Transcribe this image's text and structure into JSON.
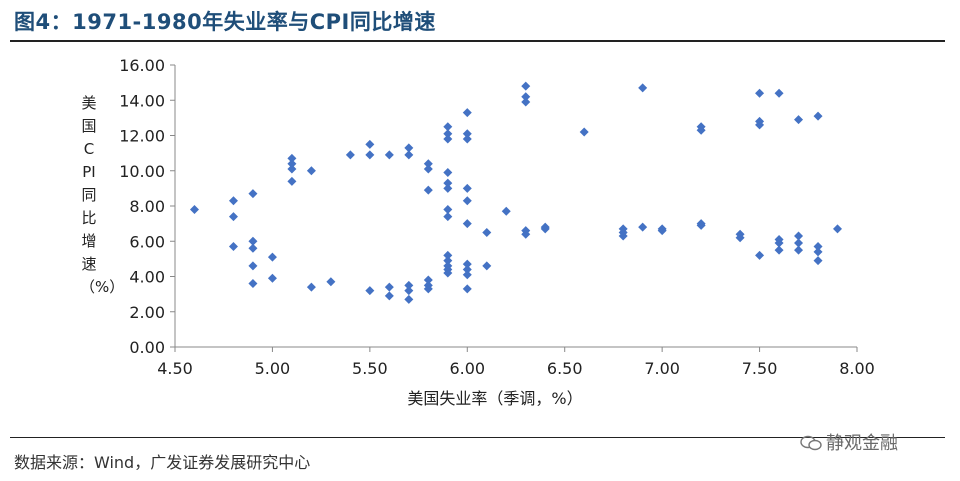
{
  "figure": {
    "title": "图4：1971-1980年失业率与CPI同比增速",
    "source": "数据来源：Wind，广发证券发展研究中心",
    "watermark": "静观金融"
  },
  "chart_data": {
    "type": "scatter",
    "title": "",
    "xlabel": "美国失业率（季调，%）",
    "ylabel": "美国CPI同比增速（%）",
    "xlim": [
      4.5,
      8.0
    ],
    "ylim": [
      0.0,
      16.0
    ],
    "x_ticks": [
      "4.50",
      "5.00",
      "5.50",
      "6.00",
      "6.50",
      "7.00",
      "7.50",
      "8.00"
    ],
    "y_ticks": [
      "0.00",
      "2.00",
      "4.00",
      "6.00",
      "8.00",
      "10.00",
      "12.00",
      "14.00",
      "16.00"
    ],
    "grid": false,
    "marker": "diamond",
    "color": "#4472C4",
    "points": [
      [
        4.6,
        7.8
      ],
      [
        4.8,
        8.3
      ],
      [
        4.8,
        7.4
      ],
      [
        4.8,
        5.7
      ],
      [
        4.9,
        8.7
      ],
      [
        4.9,
        6.0
      ],
      [
        4.9,
        5.6
      ],
      [
        4.9,
        4.6
      ],
      [
        4.9,
        3.6
      ],
      [
        5.0,
        5.1
      ],
      [
        5.0,
        3.9
      ],
      [
        5.1,
        10.7
      ],
      [
        5.1,
        10.4
      ],
      [
        5.1,
        10.1
      ],
      [
        5.1,
        9.4
      ],
      [
        5.2,
        10.0
      ],
      [
        5.2,
        3.4
      ],
      [
        5.3,
        3.7
      ],
      [
        5.4,
        10.9
      ],
      [
        5.5,
        11.5
      ],
      [
        5.5,
        10.9
      ],
      [
        5.5,
        3.2
      ],
      [
        5.6,
        10.9
      ],
      [
        5.6,
        3.4
      ],
      [
        5.6,
        2.9
      ],
      [
        5.7,
        11.3
      ],
      [
        5.7,
        10.9
      ],
      [
        5.7,
        3.5
      ],
      [
        5.7,
        3.2
      ],
      [
        5.7,
        2.7
      ],
      [
        5.8,
        10.4
      ],
      [
        5.8,
        10.1
      ],
      [
        5.8,
        8.9
      ],
      [
        5.8,
        3.8
      ],
      [
        5.8,
        3.5
      ],
      [
        5.8,
        3.3
      ],
      [
        5.9,
        12.5
      ],
      [
        5.9,
        12.1
      ],
      [
        5.9,
        11.8
      ],
      [
        5.9,
        9.9
      ],
      [
        5.9,
        9.3
      ],
      [
        5.9,
        9.0
      ],
      [
        5.9,
        7.8
      ],
      [
        5.9,
        7.4
      ],
      [
        5.9,
        5.2
      ],
      [
        5.9,
        4.9
      ],
      [
        5.9,
        4.6
      ],
      [
        5.9,
        4.4
      ],
      [
        5.9,
        4.2
      ],
      [
        6.0,
        13.3
      ],
      [
        6.0,
        12.1
      ],
      [
        6.0,
        11.8
      ],
      [
        6.0,
        9.0
      ],
      [
        6.0,
        8.3
      ],
      [
        6.0,
        7.0
      ],
      [
        6.0,
        4.7
      ],
      [
        6.0,
        4.4
      ],
      [
        6.0,
        4.1
      ],
      [
        6.0,
        3.3
      ],
      [
        6.1,
        6.5
      ],
      [
        6.1,
        4.6
      ],
      [
        6.2,
        7.7
      ],
      [
        6.3,
        14.8
      ],
      [
        6.3,
        14.2
      ],
      [
        6.3,
        13.9
      ],
      [
        6.3,
        6.6
      ],
      [
        6.3,
        6.4
      ],
      [
        6.4,
        6.8
      ],
      [
        6.4,
        6.7
      ],
      [
        6.6,
        12.2
      ],
      [
        6.8,
        6.7
      ],
      [
        6.8,
        6.5
      ],
      [
        6.8,
        6.3
      ],
      [
        6.9,
        14.7
      ],
      [
        6.9,
        6.8
      ],
      [
        7.0,
        6.7
      ],
      [
        7.0,
        6.6
      ],
      [
        7.2,
        12.5
      ],
      [
        7.2,
        12.3
      ],
      [
        7.2,
        7.0
      ],
      [
        7.2,
        6.9
      ],
      [
        7.4,
        6.4
      ],
      [
        7.4,
        6.2
      ],
      [
        7.5,
        14.4
      ],
      [
        7.5,
        12.8
      ],
      [
        7.5,
        12.6
      ],
      [
        7.5,
        5.2
      ],
      [
        7.6,
        14.4
      ],
      [
        7.6,
        6.1
      ],
      [
        7.6,
        5.9
      ],
      [
        7.6,
        5.5
      ],
      [
        7.7,
        12.9
      ],
      [
        7.7,
        6.3
      ],
      [
        7.7,
        5.9
      ],
      [
        7.7,
        5.5
      ],
      [
        7.8,
        13.1
      ],
      [
        7.8,
        5.7
      ],
      [
        7.8,
        5.4
      ],
      [
        7.8,
        4.9
      ],
      [
        7.9,
        6.7
      ]
    ]
  }
}
